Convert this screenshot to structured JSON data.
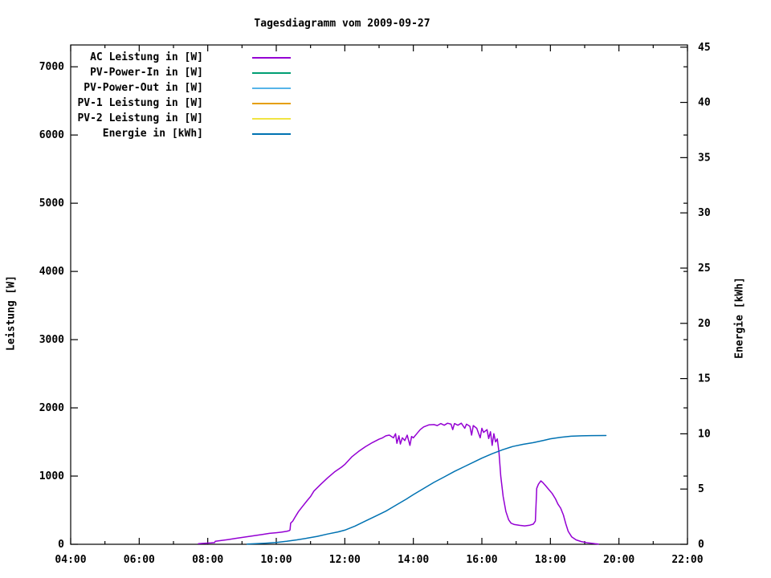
{
  "chart_data": {
    "type": "line",
    "title": "Tagesdiagramm vom 2009-09-27",
    "background": "#ffffff",
    "legend_position": "top-left-inside",
    "grid": false,
    "axes": {
      "x": {
        "min": 4,
        "max": 22,
        "ticks": [
          {
            "h": 4,
            "label": "04:00"
          },
          {
            "h": 6,
            "label": "06:00"
          },
          {
            "h": 8,
            "label": "08:00"
          },
          {
            "h": 10,
            "label": "10:00"
          },
          {
            "h": 12,
            "label": "12:00"
          },
          {
            "h": 14,
            "label": "14:00"
          },
          {
            "h": 16,
            "label": "16:00"
          },
          {
            "h": 18,
            "label": "18:00"
          },
          {
            "h": 20,
            "label": "20:00"
          },
          {
            "h": 22,
            "label": "22:00"
          }
        ],
        "minor_hours": [
          5,
          7,
          9,
          11,
          13,
          15,
          17,
          19,
          21
        ]
      },
      "y_left": {
        "label": "Leistung [W]",
        "min": 0,
        "max": 7320,
        "ticks": [
          0,
          1000,
          2000,
          3000,
          4000,
          5000,
          6000,
          7000
        ]
      },
      "y_right": {
        "label": "Energie [kWh]",
        "min": 0,
        "max": 45.2,
        "ticks": [
          0,
          5,
          10,
          15,
          20,
          25,
          30,
          35,
          40,
          45
        ]
      }
    },
    "series": [
      {
        "name": "AC Leistung in [W]",
        "color": "#9400d3",
        "axis": "left",
        "points": [
          [
            7.73,
            8
          ],
          [
            7.9,
            15
          ],
          [
            8.1,
            20
          ],
          [
            8.2,
            25
          ],
          [
            8.22,
            45
          ],
          [
            8.4,
            55
          ],
          [
            8.6,
            70
          ],
          [
            8.8,
            85
          ],
          [
            9.0,
            100
          ],
          [
            9.2,
            115
          ],
          [
            9.4,
            130
          ],
          [
            9.6,
            145
          ],
          [
            9.8,
            160
          ],
          [
            10.0,
            170
          ],
          [
            10.15,
            178
          ],
          [
            10.3,
            190
          ],
          [
            10.38,
            200
          ],
          [
            10.4,
            210
          ],
          [
            10.42,
            310
          ],
          [
            10.48,
            340
          ],
          [
            10.55,
            400
          ],
          [
            10.65,
            480
          ],
          [
            10.75,
            545
          ],
          [
            10.9,
            640
          ],
          [
            11.0,
            700
          ],
          [
            11.1,
            780
          ],
          [
            11.3,
            880
          ],
          [
            11.5,
            975
          ],
          [
            11.7,
            1060
          ],
          [
            11.9,
            1130
          ],
          [
            12.0,
            1170
          ],
          [
            12.2,
            1280
          ],
          [
            12.4,
            1360
          ],
          [
            12.6,
            1430
          ],
          [
            12.8,
            1490
          ],
          [
            13.0,
            1540
          ],
          [
            13.1,
            1560
          ],
          [
            13.2,
            1590
          ],
          [
            13.3,
            1600
          ],
          [
            13.42,
            1560
          ],
          [
            13.48,
            1620
          ],
          [
            13.52,
            1480
          ],
          [
            13.58,
            1590
          ],
          [
            13.62,
            1470
          ],
          [
            13.68,
            1560
          ],
          [
            13.75,
            1520
          ],
          [
            13.82,
            1600
          ],
          [
            13.9,
            1450
          ],
          [
            13.95,
            1580
          ],
          [
            14.0,
            1560
          ],
          [
            14.1,
            1620
          ],
          [
            14.2,
            1680
          ],
          [
            14.3,
            1720
          ],
          [
            14.45,
            1750
          ],
          [
            14.6,
            1755
          ],
          [
            14.7,
            1740
          ],
          [
            14.8,
            1770
          ],
          [
            14.9,
            1745
          ],
          [
            15.0,
            1775
          ],
          [
            15.1,
            1760
          ],
          [
            15.15,
            1680
          ],
          [
            15.2,
            1770
          ],
          [
            15.3,
            1745
          ],
          [
            15.4,
            1775
          ],
          [
            15.5,
            1700
          ],
          [
            15.55,
            1760
          ],
          [
            15.65,
            1730
          ],
          [
            15.7,
            1600
          ],
          [
            15.75,
            1740
          ],
          [
            15.85,
            1700
          ],
          [
            15.95,
            1560
          ],
          [
            16.0,
            1700
          ],
          [
            16.05,
            1640
          ],
          [
            16.15,
            1680
          ],
          [
            16.2,
            1550
          ],
          [
            16.25,
            1650
          ],
          [
            16.3,
            1450
          ],
          [
            16.35,
            1620
          ],
          [
            16.4,
            1500
          ],
          [
            16.45,
            1545
          ],
          [
            16.5,
            1350
          ],
          [
            16.55,
            1000
          ],
          [
            16.62,
            700
          ],
          [
            16.7,
            480
          ],
          [
            16.78,
            360
          ],
          [
            16.85,
            310
          ],
          [
            16.95,
            290
          ],
          [
            17.1,
            278
          ],
          [
            17.25,
            270
          ],
          [
            17.4,
            280
          ],
          [
            17.5,
            295
          ],
          [
            17.56,
            340
          ],
          [
            17.6,
            820
          ],
          [
            17.65,
            880
          ],
          [
            17.72,
            930
          ],
          [
            17.78,
            905
          ],
          [
            17.85,
            865
          ],
          [
            17.95,
            805
          ],
          [
            18.05,
            745
          ],
          [
            18.15,
            665
          ],
          [
            18.22,
            590
          ],
          [
            18.3,
            530
          ],
          [
            18.38,
            430
          ],
          [
            18.45,
            300
          ],
          [
            18.52,
            190
          ],
          [
            18.62,
            110
          ],
          [
            18.75,
            65
          ],
          [
            18.9,
            40
          ],
          [
            19.1,
            20
          ],
          [
            19.3,
            8
          ],
          [
            19.4,
            3
          ]
        ]
      },
      {
        "name": "PV-Power-In in [W]",
        "color": "#009e73",
        "axis": "left",
        "points": []
      },
      {
        "name": "PV-Power-Out in [W]",
        "color": "#56b4e9",
        "axis": "left",
        "points": []
      },
      {
        "name": "PV-1 Leistung in [W]",
        "color": "#e69f00",
        "axis": "left",
        "points": []
      },
      {
        "name": "PV-2 Leistung in [W]",
        "color": "#f0e442",
        "axis": "left",
        "points": []
      },
      {
        "name": "Energie in [kWh]",
        "color": "#0072b2",
        "axis": "right",
        "points": [
          [
            9.15,
            0.02
          ],
          [
            9.4,
            0.05
          ],
          [
            9.7,
            0.1
          ],
          [
            10.0,
            0.17
          ],
          [
            10.3,
            0.27
          ],
          [
            10.6,
            0.4
          ],
          [
            10.9,
            0.55
          ],
          [
            11.2,
            0.72
          ],
          [
            11.5,
            0.93
          ],
          [
            11.8,
            1.12
          ],
          [
            12.0,
            1.28
          ],
          [
            12.3,
            1.65
          ],
          [
            12.6,
            2.1
          ],
          [
            12.9,
            2.55
          ],
          [
            13.2,
            3.0
          ],
          [
            13.5,
            3.55
          ],
          [
            13.8,
            4.1
          ],
          [
            14.0,
            4.5
          ],
          [
            14.3,
            5.05
          ],
          [
            14.6,
            5.6
          ],
          [
            14.9,
            6.1
          ],
          [
            15.2,
            6.6
          ],
          [
            15.5,
            7.05
          ],
          [
            15.8,
            7.5
          ],
          [
            16.0,
            7.8
          ],
          [
            16.3,
            8.2
          ],
          [
            16.6,
            8.55
          ],
          [
            16.9,
            8.85
          ],
          [
            17.2,
            9.05
          ],
          [
            17.5,
            9.2
          ],
          [
            17.8,
            9.4
          ],
          [
            18.0,
            9.55
          ],
          [
            18.3,
            9.68
          ],
          [
            18.6,
            9.78
          ],
          [
            18.9,
            9.82
          ],
          [
            19.2,
            9.84
          ],
          [
            19.62,
            9.85
          ]
        ]
      }
    ]
  }
}
